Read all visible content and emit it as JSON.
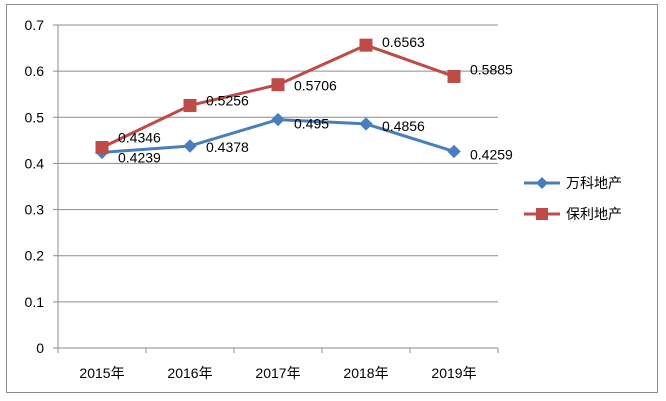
{
  "chart_data": {
    "type": "line",
    "title": "",
    "xlabel": "",
    "ylabel": "",
    "categories": [
      "2015年",
      "2016年",
      "2017年",
      "2018年",
      "2019年"
    ],
    "ylim": [
      0,
      0.7
    ],
    "yticks": [
      "0",
      "0.1",
      "0.2",
      "0.3",
      "0.4",
      "0.5",
      "0.6",
      "0.7"
    ],
    "grid": "horizontal",
    "legend_position": "right",
    "series": [
      {
        "name": "万科地产",
        "values": [
          0.4239,
          0.4378,
          0.495,
          0.4856,
          0.4259
        ],
        "labels": [
          "0.4239",
          "0.4378",
          "0.495",
          "0.4856",
          "0.4259"
        ],
        "color": "#4a7ebb",
        "marker": "diamond"
      },
      {
        "name": "保利地产",
        "values": [
          0.4346,
          0.5256,
          0.5706,
          0.6563,
          0.5885
        ],
        "labels": [
          "0.4346",
          "0.5256",
          "0.5706",
          "0.6563",
          "0.5885"
        ],
        "color": "#be4b48",
        "marker": "square"
      }
    ]
  }
}
